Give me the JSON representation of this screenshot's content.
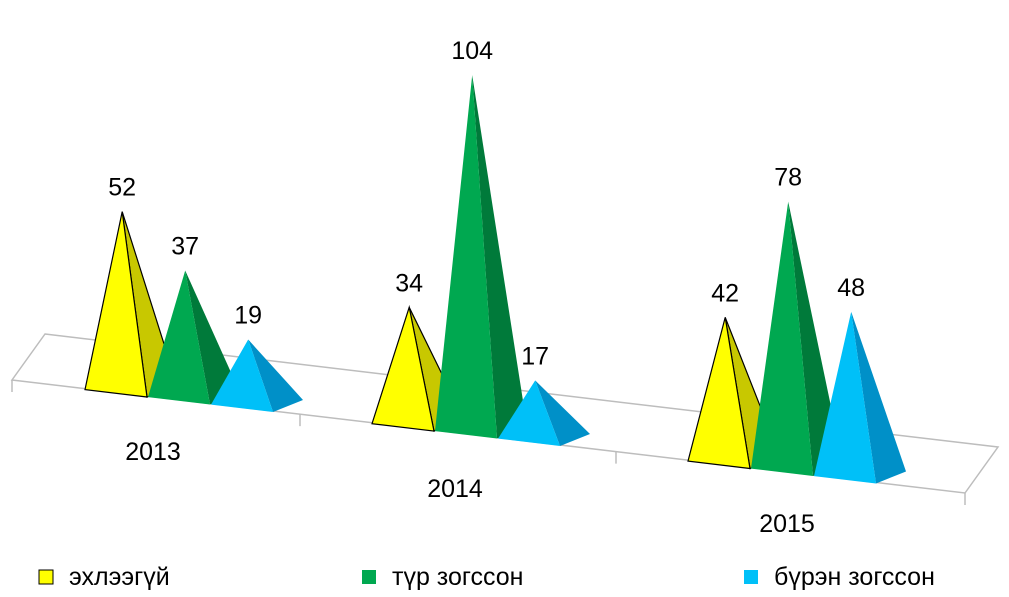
{
  "chart_data": {
    "type": "bar",
    "style": "3d-pyramid",
    "categories": [
      "2013",
      "2014",
      "2015"
    ],
    "series": [
      {
        "name": "эхлээгүй",
        "values": [
          52,
          34,
          42
        ],
        "color": "#ffff00",
        "shade": "#c8c800"
      },
      {
        "name": "түр зогссон",
        "values": [
          37,
          104,
          78
        ],
        "color": "#00a850",
        "shade": "#007a3a"
      },
      {
        "name": "бүрэн зогссон",
        "values": [
          19,
          17,
          48
        ],
        "color": "#00c0f8",
        "shade": "#0090c8"
      }
    ],
    "title": "",
    "xlabel": "",
    "ylabel": "",
    "ylim": [
      0,
      104
    ],
    "grid": false,
    "legend": "bottom"
  }
}
